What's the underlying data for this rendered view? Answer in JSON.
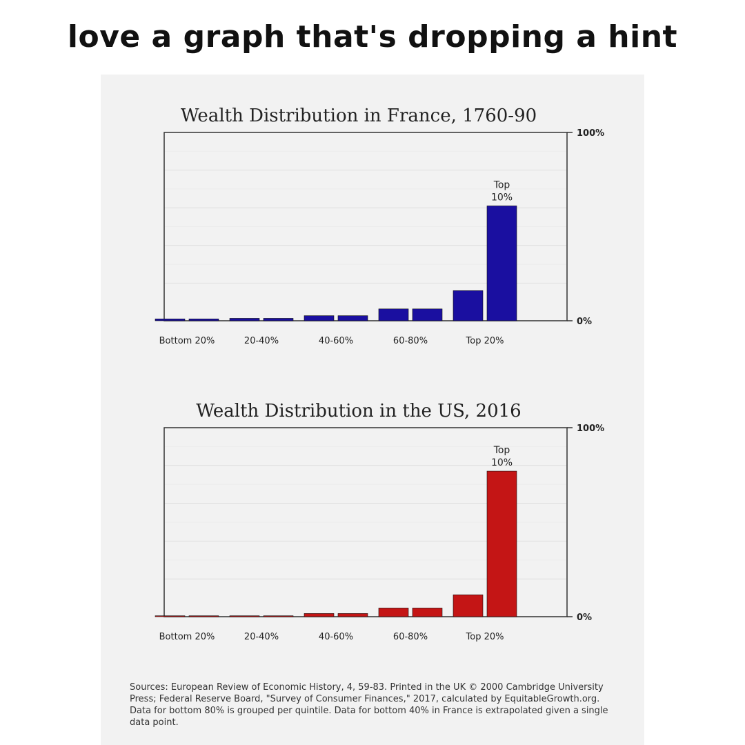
{
  "meme_caption": "love a graph that's dropping a hint",
  "sources_text": "Sources: European Review of Economic History, 4, 59-83. Printed in the UK © 2000 Cambridge University Press; Federal Reserve Board, \"Survey of Consumer Finances,\" 2017, calculated by EquitableGrowth.org. Data for bottom 80% is grouped per quintile. Data for bottom 40% in France is extrapolated given a single data point.",
  "colors": {
    "france": "#1a0fa0",
    "us": "#c41515",
    "text": "#222222",
    "grid": "#dddddd"
  },
  "chart_data": [
    {
      "type": "bar",
      "title": "Wealth Distribution in France, 1760-90",
      "categories": [
        "Bottom 20%",
        "20-40%",
        "40-60%",
        "60-80%",
        "Top 20%"
      ],
      "bars": [
        {
          "group": "Bottom 20%",
          "value": 1
        },
        {
          "group": "Bottom 20%",
          "value": 1
        },
        {
          "group": "20-40%",
          "value": 1.3
        },
        {
          "group": "20-40%",
          "value": 1.3
        },
        {
          "group": "40-60%",
          "value": 2.7
        },
        {
          "group": "40-60%",
          "value": 2.7
        },
        {
          "group": "60-80%",
          "value": 6.3
        },
        {
          "group": "60-80%",
          "value": 6.3
        },
        {
          "group": "Top 20%",
          "value": 16
        },
        {
          "group": "Top 20%",
          "value": 61,
          "label": "Top\n10%"
        }
      ],
      "y_tick_labels": {
        "min": "0%",
        "max": "100%"
      },
      "ylim": [
        0,
        100
      ],
      "grid": true
    },
    {
      "type": "bar",
      "title": "Wealth Distribution in the US, 2016",
      "categories": [
        "Bottom 20%",
        "20-40%",
        "40-60%",
        "60-80%",
        "Top 20%"
      ],
      "bars": [
        {
          "group": "Bottom 20%",
          "value": 0.5
        },
        {
          "group": "Bottom 20%",
          "value": 0.5
        },
        {
          "group": "20-40%",
          "value": 0.5
        },
        {
          "group": "20-40%",
          "value": 0.5
        },
        {
          "group": "40-60%",
          "value": 1.7
        },
        {
          "group": "40-60%",
          "value": 1.7
        },
        {
          "group": "60-80%",
          "value": 4.6
        },
        {
          "group": "60-80%",
          "value": 4.6
        },
        {
          "group": "Top 20%",
          "value": 11.6
        },
        {
          "group": "Top 20%",
          "value": 77,
          "label": "Top\n10%"
        }
      ],
      "y_tick_labels": {
        "min": "0%",
        "max": "100%"
      },
      "ylim": [
        0,
        100
      ],
      "grid": true
    }
  ]
}
